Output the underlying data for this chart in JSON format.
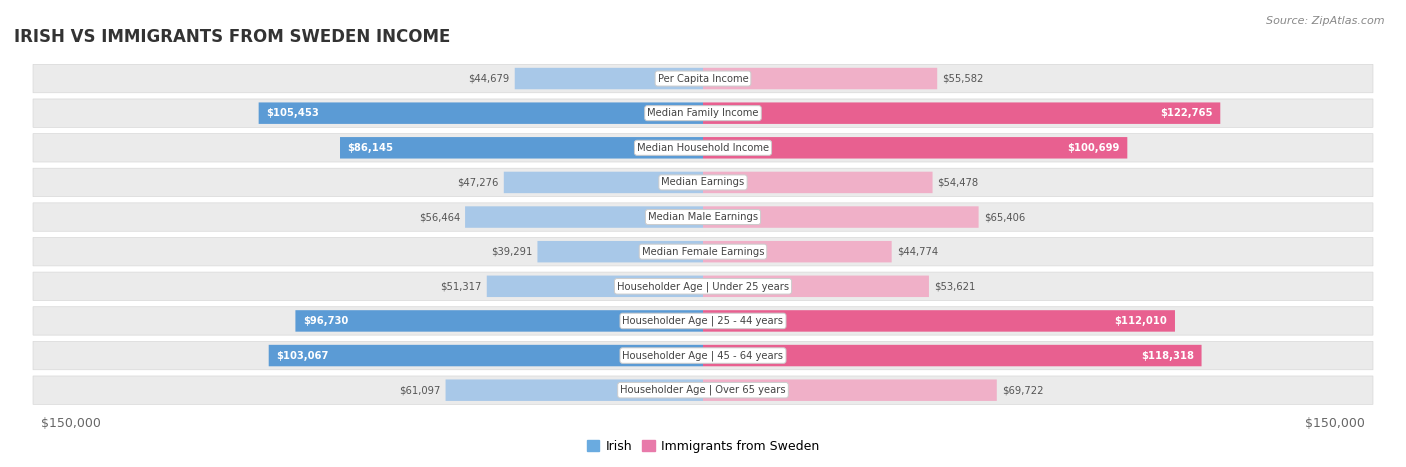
{
  "title": "IRISH VS IMMIGRANTS FROM SWEDEN INCOME",
  "source": "Source: ZipAtlas.com",
  "categories": [
    "Per Capita Income",
    "Median Family Income",
    "Median Household Income",
    "Median Earnings",
    "Median Male Earnings",
    "Median Female Earnings",
    "Householder Age | Under 25 years",
    "Householder Age | 25 - 44 years",
    "Householder Age | 45 - 64 years",
    "Householder Age | Over 65 years"
  ],
  "irish_values": [
    44679,
    105453,
    86145,
    47276,
    56464,
    39291,
    51317,
    96730,
    103067,
    61097
  ],
  "sweden_values": [
    55582,
    122765,
    100699,
    54478,
    65406,
    44774,
    53621,
    112010,
    118318,
    69722
  ],
  "irish_labels": [
    "$44,679",
    "$105,453",
    "$86,145",
    "$47,276",
    "$56,464",
    "$39,291",
    "$51,317",
    "$96,730",
    "$103,067",
    "$61,097"
  ],
  "sweden_labels": [
    "$55,582",
    "$122,765",
    "$100,699",
    "$54,478",
    "$65,406",
    "$44,774",
    "$53,621",
    "$112,010",
    "$118,318",
    "$69,722"
  ],
  "irish_color_light": "#a8c8e8",
  "irish_color_dark": "#5b9bd5",
  "sweden_color_light": "#f0b0c8",
  "sweden_color_dark": "#e86090",
  "max_value": 150000,
  "row_bg_color": "#ebebeb",
  "row_border_color": "#d8d8d8",
  "label_inside_threshold": 75000,
  "background_color": "#ffffff",
  "legend_irish_color": "#6aabe0",
  "legend_sweden_color": "#e87aaa"
}
